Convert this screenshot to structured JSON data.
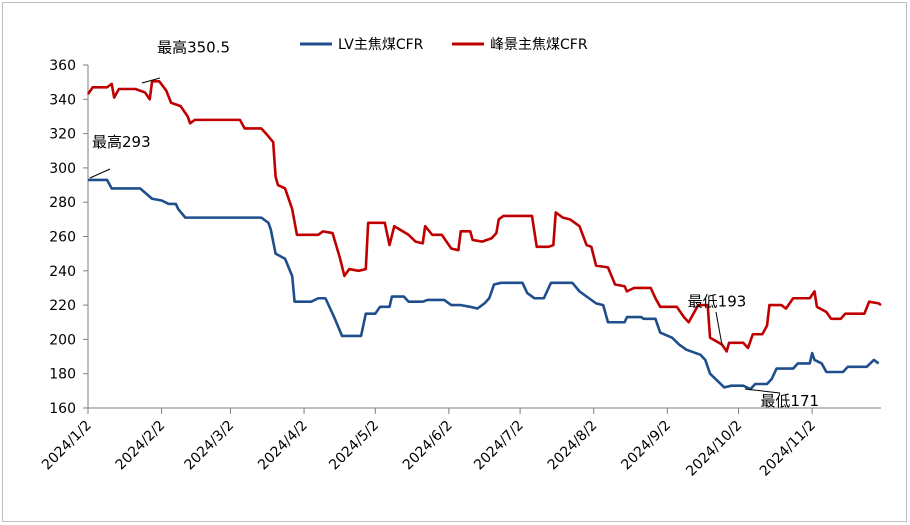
{
  "chart_data": {
    "type": "line",
    "title": "",
    "xlabel": "",
    "ylabel": "",
    "ylim": [
      160,
      360
    ],
    "yticks": [
      160,
      180,
      200,
      220,
      240,
      260,
      280,
      300,
      320,
      340,
      360
    ],
    "x_labels": [
      "2024/1/2",
      "2024/2/2",
      "2024/3/2",
      "2024/4/2",
      "2024/5/2",
      "2024/6/2",
      "2024/7/2",
      "2024/8/2",
      "2024/9/2",
      "2024/10/2",
      "2024/11/2"
    ],
    "legend": {
      "position": "top-center"
    },
    "grid": false,
    "series": [
      {
        "name": "LV主焦煤CFR",
        "color": "#1F4E8C",
        "points": [
          [
            "2024-01-02",
            293
          ],
          [
            "2024-01-10",
            293
          ],
          [
            "2024-01-12",
            288
          ],
          [
            "2024-01-24",
            288
          ],
          [
            "2024-01-29",
            282
          ],
          [
            "2024-02-02",
            281
          ],
          [
            "2024-02-05",
            279
          ],
          [
            "2024-02-08",
            279
          ],
          [
            "2024-02-09",
            276
          ],
          [
            "2024-02-12",
            271
          ],
          [
            "2024-03-01",
            271
          ],
          [
            "2024-03-08",
            271
          ],
          [
            "2024-03-15",
            271
          ],
          [
            "2024-03-18",
            268
          ],
          [
            "2024-03-19",
            264
          ],
          [
            "2024-03-21",
            250
          ],
          [
            "2024-03-25",
            247
          ],
          [
            "2024-03-28",
            237
          ],
          [
            "2024-03-29",
            222
          ],
          [
            "2024-04-05",
            222
          ],
          [
            "2024-04-08",
            224
          ],
          [
            "2024-04-11",
            224
          ],
          [
            "2024-04-15",
            212
          ],
          [
            "2024-04-18",
            202
          ],
          [
            "2024-04-26",
            202
          ],
          [
            "2024-04-28",
            215
          ],
          [
            "2024-05-02",
            215
          ],
          [
            "2024-05-04",
            219
          ],
          [
            "2024-05-08",
            219
          ],
          [
            "2024-05-09",
            225
          ],
          [
            "2024-05-14",
            225
          ],
          [
            "2024-05-16",
            222
          ],
          [
            "2024-05-22",
            222
          ],
          [
            "2024-05-24",
            223
          ],
          [
            "2024-05-31",
            223
          ],
          [
            "2024-06-03",
            220
          ],
          [
            "2024-06-07",
            220
          ],
          [
            "2024-06-11",
            219
          ],
          [
            "2024-06-14",
            218
          ],
          [
            "2024-06-17",
            221
          ],
          [
            "2024-06-19",
            224
          ],
          [
            "2024-06-21",
            232
          ],
          [
            "2024-06-24",
            233
          ],
          [
            "2024-07-03",
            233
          ],
          [
            "2024-07-05",
            227
          ],
          [
            "2024-07-08",
            224
          ],
          [
            "2024-07-12",
            224
          ],
          [
            "2024-07-15",
            233
          ],
          [
            "2024-07-24",
            233
          ],
          [
            "2024-07-27",
            228
          ],
          [
            "2024-08-03",
            221
          ],
          [
            "2024-08-06",
            220
          ],
          [
            "2024-08-08",
            210
          ],
          [
            "2024-08-15",
            210
          ],
          [
            "2024-08-16",
            213
          ],
          [
            "2024-08-22",
            213
          ],
          [
            "2024-08-23",
            212
          ],
          [
            "2024-08-28",
            212
          ],
          [
            "2024-08-30",
            204
          ],
          [
            "2024-09-04",
            201
          ],
          [
            "2024-09-07",
            197
          ],
          [
            "2024-09-10",
            194
          ],
          [
            "2024-09-16",
            191
          ],
          [
            "2024-09-18",
            188
          ],
          [
            "2024-09-20",
            180
          ],
          [
            "2024-09-23",
            176
          ],
          [
            "2024-09-26",
            172
          ],
          [
            "2024-09-29",
            173
          ],
          [
            "2024-10-04",
            173
          ],
          [
            "2024-10-07",
            171
          ],
          [
            "2024-10-09",
            174
          ],
          [
            "2024-10-14",
            174
          ],
          [
            "2024-10-16",
            177
          ],
          [
            "2024-10-18",
            183
          ],
          [
            "2024-10-25",
            183
          ],
          [
            "2024-10-27",
            186
          ],
          [
            "2024-11-01",
            186
          ],
          [
            "2024-11-02",
            192
          ],
          [
            "2024-11-03",
            188
          ],
          [
            "2024-11-06",
            186
          ],
          [
            "2024-11-08",
            181
          ],
          [
            "2024-11-15",
            181
          ],
          [
            "2024-11-17",
            184
          ],
          [
            "2024-11-25",
            184
          ],
          [
            "2024-11-28",
            188
          ],
          [
            "2024-11-30",
            186
          ]
        ]
      },
      {
        "name": "峰景主焦煤CFR",
        "color": "#C00000",
        "points": [
          [
            "2024-01-02",
            343
          ],
          [
            "2024-01-04",
            347
          ],
          [
            "2024-01-10",
            347
          ],
          [
            "2024-01-12",
            349
          ],
          [
            "2024-01-13",
            341
          ],
          [
            "2024-01-15",
            346
          ],
          [
            "2024-01-22",
            346
          ],
          [
            "2024-01-26",
            344
          ],
          [
            "2024-01-28",
            340
          ],
          [
            "2024-01-29",
            350.5
          ],
          [
            "2024-02-01",
            350.5
          ],
          [
            "2024-02-04",
            345
          ],
          [
            "2024-02-06",
            338
          ],
          [
            "2024-02-10",
            336
          ],
          [
            "2024-02-13",
            330
          ],
          [
            "2024-02-14",
            326
          ],
          [
            "2024-02-16",
            328
          ],
          [
            "2024-03-01",
            328
          ],
          [
            "2024-03-06",
            328
          ],
          [
            "2024-03-08",
            323
          ],
          [
            "2024-03-15",
            323
          ],
          [
            "2024-03-17",
            320
          ],
          [
            "2024-03-20",
            315
          ],
          [
            "2024-03-21",
            295
          ],
          [
            "2024-03-22",
            290
          ],
          [
            "2024-03-25",
            288
          ],
          [
            "2024-03-28",
            276
          ],
          [
            "2024-03-30",
            261
          ],
          [
            "2024-04-08",
            261
          ],
          [
            "2024-04-10",
            263
          ],
          [
            "2024-04-14",
            262
          ],
          [
            "2024-04-17",
            248
          ],
          [
            "2024-04-19",
            237
          ],
          [
            "2024-04-21",
            241
          ],
          [
            "2024-04-25",
            240
          ],
          [
            "2024-04-28",
            241
          ],
          [
            "2024-04-29",
            268
          ],
          [
            "2024-05-06",
            268
          ],
          [
            "2024-05-08",
            255
          ],
          [
            "2024-05-10",
            266
          ],
          [
            "2024-05-16",
            261
          ],
          [
            "2024-05-19",
            257
          ],
          [
            "2024-05-22",
            256
          ],
          [
            "2024-05-23",
            266
          ],
          [
            "2024-05-26",
            261
          ],
          [
            "2024-05-30",
            261
          ],
          [
            "2024-06-03",
            253
          ],
          [
            "2024-06-06",
            252
          ],
          [
            "2024-06-07",
            263
          ],
          [
            "2024-06-11",
            263
          ],
          [
            "2024-06-12",
            258
          ],
          [
            "2024-06-16",
            257
          ],
          [
            "2024-06-20",
            259
          ],
          [
            "2024-06-22",
            262
          ],
          [
            "2024-06-23",
            270
          ],
          [
            "2024-06-25",
            272
          ],
          [
            "2024-07-07",
            272
          ],
          [
            "2024-07-09",
            254
          ],
          [
            "2024-07-14",
            254
          ],
          [
            "2024-07-16",
            255
          ],
          [
            "2024-07-17",
            274
          ],
          [
            "2024-07-20",
            271
          ],
          [
            "2024-07-23",
            270
          ],
          [
            "2024-07-27",
            266
          ],
          [
            "2024-07-30",
            255
          ],
          [
            "2024-08-01",
            254
          ],
          [
            "2024-08-03",
            243
          ],
          [
            "2024-08-08",
            242
          ],
          [
            "2024-08-11",
            232
          ],
          [
            "2024-08-15",
            231
          ],
          [
            "2024-08-16",
            228
          ],
          [
            "2024-08-19",
            230
          ],
          [
            "2024-08-26",
            230
          ],
          [
            "2024-08-28",
            224
          ],
          [
            "2024-08-30",
            219
          ],
          [
            "2024-09-06",
            219
          ],
          [
            "2024-09-09",
            213
          ],
          [
            "2024-09-11",
            210
          ],
          [
            "2024-09-15",
            220
          ],
          [
            "2024-09-19",
            220
          ],
          [
            "2024-09-20",
            201
          ],
          [
            "2024-09-25",
            197
          ],
          [
            "2024-09-27",
            193
          ],
          [
            "2024-09-28",
            198
          ],
          [
            "2024-10-04",
            198
          ],
          [
            "2024-10-06",
            195
          ],
          [
            "2024-10-08",
            203
          ],
          [
            "2024-10-12",
            203
          ],
          [
            "2024-10-14",
            208
          ],
          [
            "2024-10-15",
            220
          ],
          [
            "2024-10-20",
            220
          ],
          [
            "2024-10-22",
            218
          ],
          [
            "2024-10-25",
            224
          ],
          [
            "2024-11-01",
            224
          ],
          [
            "2024-11-03",
            228
          ],
          [
            "2024-11-04",
            219
          ],
          [
            "2024-11-08",
            216
          ],
          [
            "2024-11-10",
            212
          ],
          [
            "2024-11-14",
            212
          ],
          [
            "2024-11-16",
            215
          ],
          [
            "2024-11-24",
            215
          ],
          [
            "2024-11-26",
            222
          ],
          [
            "2024-11-30",
            221
          ],
          [
            "2024-12-01",
            220
          ]
        ]
      }
    ],
    "annotations": [
      {
        "text": "最高293",
        "series": 0,
        "x": "2024-01-02",
        "y": 293
      },
      {
        "text": "最高350.5",
        "series": 1,
        "x": "2024-01-29",
        "y": 350.5
      },
      {
        "text": "最低193",
        "series": 1,
        "x": "2024-09-27",
        "y": 193
      },
      {
        "text": "最低171",
        "series": 0,
        "x": "2024-10-07",
        "y": 171
      }
    ]
  }
}
